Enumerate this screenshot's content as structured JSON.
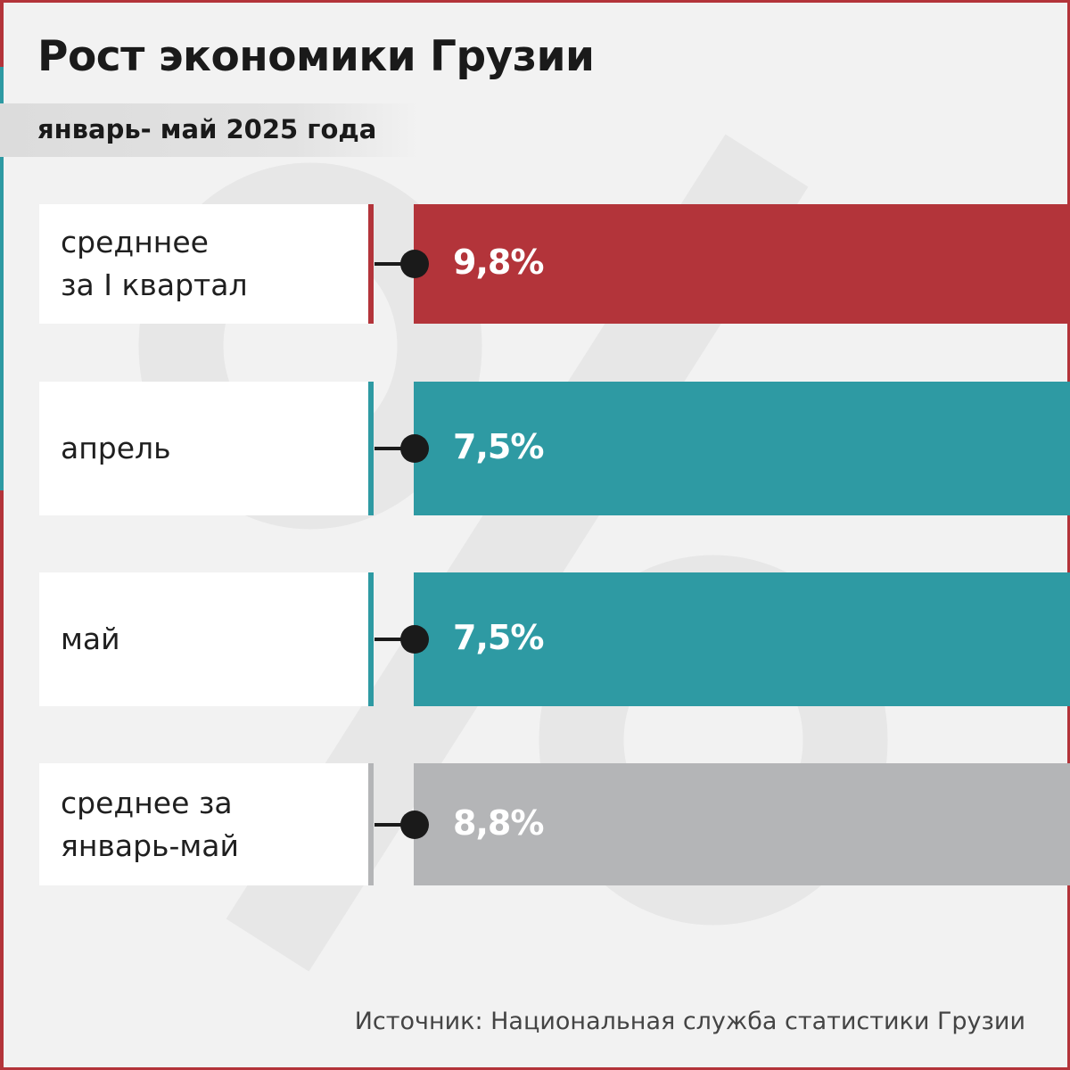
{
  "title": "Рост экономики Грузии",
  "subtitle": "январь- май 2025 года",
  "source": "Источник: Национальная служба статистики Грузии",
  "watermark_icon": "percent-sign",
  "colors": {
    "red": "#b3343a",
    "teal": "#2e9aa3",
    "gray": "#b4b5b7",
    "background": "#f2f2f2"
  },
  "chart_data": {
    "type": "bar",
    "orientation": "horizontal",
    "title": "Рост экономики Грузии",
    "subtitle": "январь- май 2025 года",
    "categories": [
      "средннее\nза I квартал",
      "апрель",
      "май",
      "среднее за\nянварь-май"
    ],
    "values": [
      9.8,
      7.5,
      7.5,
      8.8
    ],
    "value_labels": [
      "9,8%",
      "7,5%",
      "7,5%",
      "8,8%"
    ],
    "bar_colors": [
      "#b3343a",
      "#2e9aa3",
      "#2e9aa3",
      "#b4b5b7"
    ],
    "unit": "%",
    "xlim": [
      0,
      10
    ],
    "grid": false,
    "legend": "none"
  }
}
